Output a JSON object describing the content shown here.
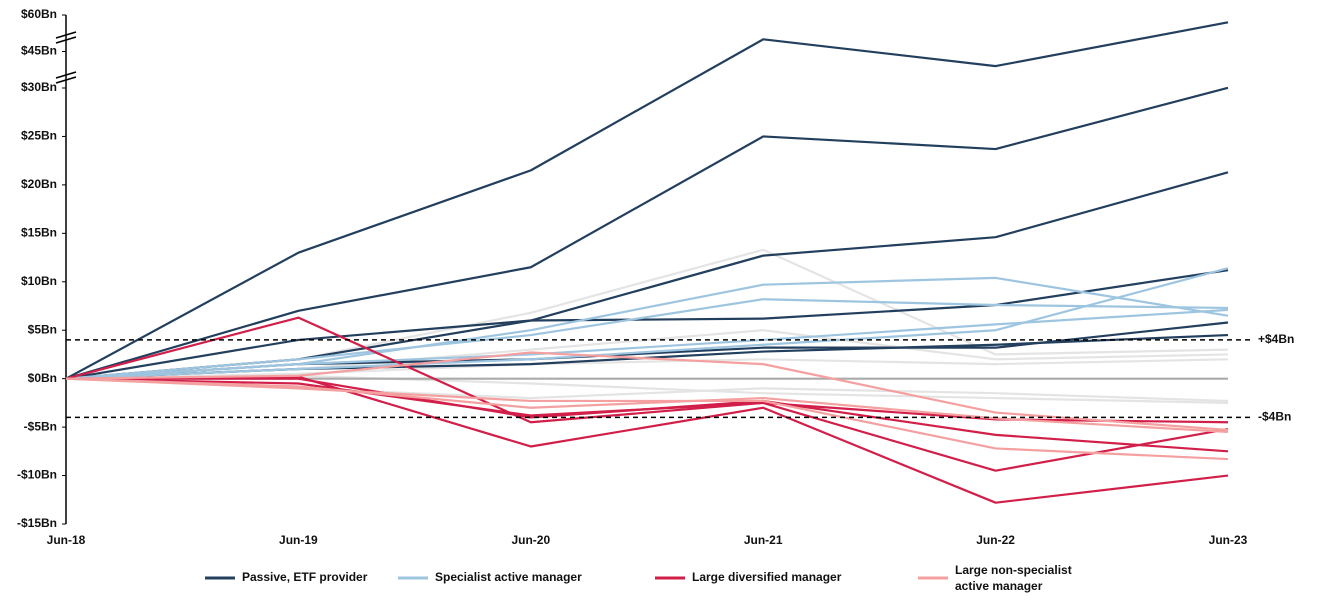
{
  "chart_data": {
    "type": "line",
    "categories": [
      "Jun-18",
      "Jun-19",
      "Jun-20",
      "Jun-21",
      "Jun-22",
      "Jun-23"
    ],
    "ylim": [
      -15,
      60
    ],
    "axis_break_at": 30,
    "yticks": [
      {
        "value": -15,
        "label": "-$15Bn"
      },
      {
        "value": -10,
        "label": "-$10Bn"
      },
      {
        "value": -5,
        "label": "-$5Bn"
      },
      {
        "value": 0,
        "label": "$0Bn"
      },
      {
        "value": 5,
        "label": "$5Bn"
      },
      {
        "value": 10,
        "label": "$10Bn"
      },
      {
        "value": 15,
        "label": "$15Bn"
      },
      {
        "value": 20,
        "label": "$20Bn"
      },
      {
        "value": 25,
        "label": "$25Bn"
      },
      {
        "value": 30,
        "label": "$30Bn"
      },
      {
        "value": 45,
        "label": "$45Bn"
      },
      {
        "value": 60,
        "label": "$60Bn"
      }
    ],
    "reference_lines": [
      {
        "value": 4,
        "label": "+$4Bn"
      },
      {
        "value": -4,
        "label": "-$4Bn"
      }
    ],
    "legend": [
      {
        "name": "Passive, ETF provider",
        "color": "#233f5e"
      },
      {
        "name": "Specialist active manager",
        "color": "#9ec5e0"
      },
      {
        "name": "Large diversified manager",
        "color": "#d21f4a"
      },
      {
        "name": "Large non-specialist active manager",
        "color": "#f4a0a0"
      }
    ],
    "background_series": [
      {
        "color": "#e4e4e4",
        "values": [
          0,
          2,
          6.8,
          13.3,
          2.5,
          3
        ]
      },
      {
        "color": "#e4e4e4",
        "values": [
          0,
          1,
          3,
          5,
          2,
          2.5
        ]
      },
      {
        "color": "#e4e4e4",
        "values": [
          0,
          0.5,
          1.5,
          2,
          1.5,
          2
        ]
      },
      {
        "color": "#e4e4e4",
        "values": [
          0,
          -1,
          -2,
          -1,
          -1.5,
          -2.3
        ]
      },
      {
        "color": "#e4e4e4",
        "values": [
          0,
          0.3,
          -0.5,
          -1.5,
          -2,
          -2.5
        ]
      },
      {
        "color": "#aaaaaa",
        "values": [
          0,
          0,
          0,
          0,
          0,
          0
        ]
      }
    ],
    "series": [
      {
        "group": 0,
        "values": [
          0,
          13,
          21.5,
          50,
          39,
          57
        ]
      },
      {
        "group": 0,
        "values": [
          0,
          7,
          11.5,
          25,
          23.7,
          30.1
        ]
      },
      {
        "group": 0,
        "values": [
          0,
          4,
          6,
          12.7,
          14.6,
          21.3
        ]
      },
      {
        "group": 0,
        "values": [
          0,
          2,
          6,
          6.2,
          7.6,
          11.2
        ]
      },
      {
        "group": 0,
        "values": [
          0,
          1.5,
          2,
          3.2,
          3.2,
          5.8
        ]
      },
      {
        "group": 0,
        "values": [
          0,
          1,
          1.5,
          2.8,
          3.5,
          4.5
        ]
      },
      {
        "group": 1,
        "values": [
          0,
          1.5,
          5,
          9.7,
          10.4,
          6.5
        ]
      },
      {
        "group": 1,
        "values": [
          0,
          2,
          4.5,
          8.2,
          7.6,
          7.3
        ]
      },
      {
        "group": 1,
        "values": [
          0,
          1.5,
          2.5,
          4,
          5.6,
          7.1
        ]
      },
      {
        "group": 1,
        "values": [
          0,
          1,
          2,
          3.5,
          5,
          11.4
        ]
      },
      {
        "group": 2,
        "values": [
          0,
          6.3,
          -4.5,
          -2.5,
          -9.5,
          -5.2
        ]
      },
      {
        "group": 2,
        "values": [
          0,
          0.2,
          -7,
          -3,
          -12.8,
          -10
        ]
      },
      {
        "group": 2,
        "values": [
          0,
          0,
          -4,
          -2.3,
          -5.8,
          -7.5
        ]
      },
      {
        "group": 2,
        "values": [
          0,
          -0.5,
          -3.8,
          -2.5,
          -4.2,
          -4.5
        ]
      },
      {
        "group": 3,
        "values": [
          0,
          -1,
          -2.3,
          -2.3,
          -7.2,
          -8.3
        ]
      },
      {
        "group": 3,
        "values": [
          0,
          -0.8,
          -3,
          -2,
          -4.1,
          -5.5
        ]
      },
      {
        "group": 3,
        "values": [
          0,
          0.3,
          2.7,
          1.5,
          -3.5,
          -5.3
        ]
      }
    ]
  }
}
